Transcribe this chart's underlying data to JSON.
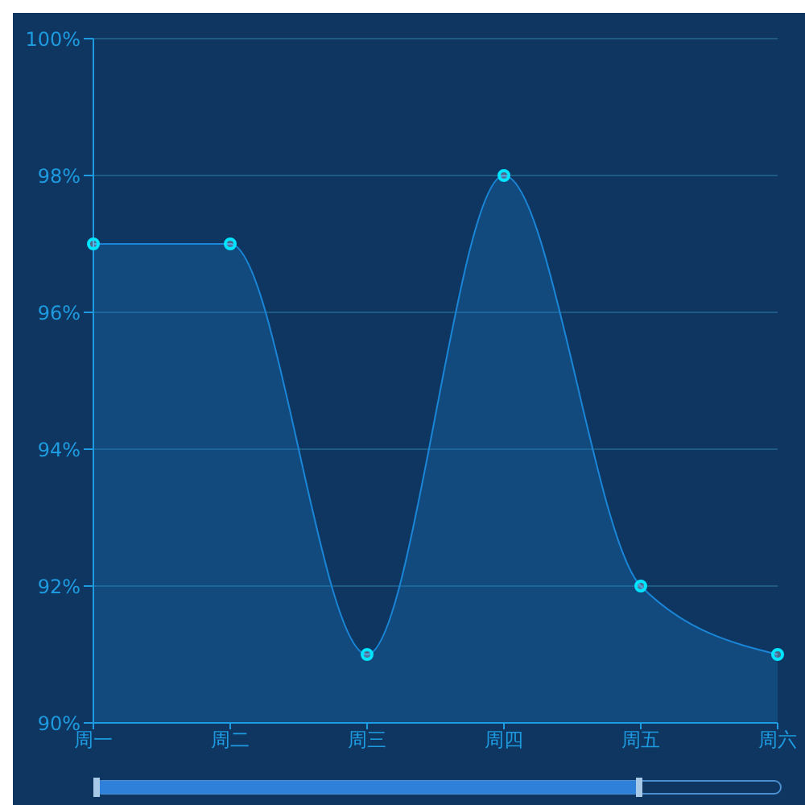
{
  "chart_data": {
    "type": "area",
    "categories": [
      "周一",
      "周二",
      "周三",
      "周四",
      "周五",
      "周六"
    ],
    "series": [
      {
        "color": "#1a86d8",
        "values": [
          97,
          97,
          91,
          98,
          92,
          91
        ]
      }
    ],
    "ylim": [
      90,
      100
    ],
    "yticks": [
      {
        "value": 90,
        "label": "90%"
      },
      {
        "value": 92,
        "label": "92%"
      },
      {
        "value": 94,
        "label": "94%"
      },
      {
        "value": 96,
        "label": "96%"
      },
      {
        "value": 98,
        "label": "98%"
      },
      {
        "value": 100,
        "label": "100%"
      }
    ],
    "grid": "y",
    "marker": "circle"
  }
}
